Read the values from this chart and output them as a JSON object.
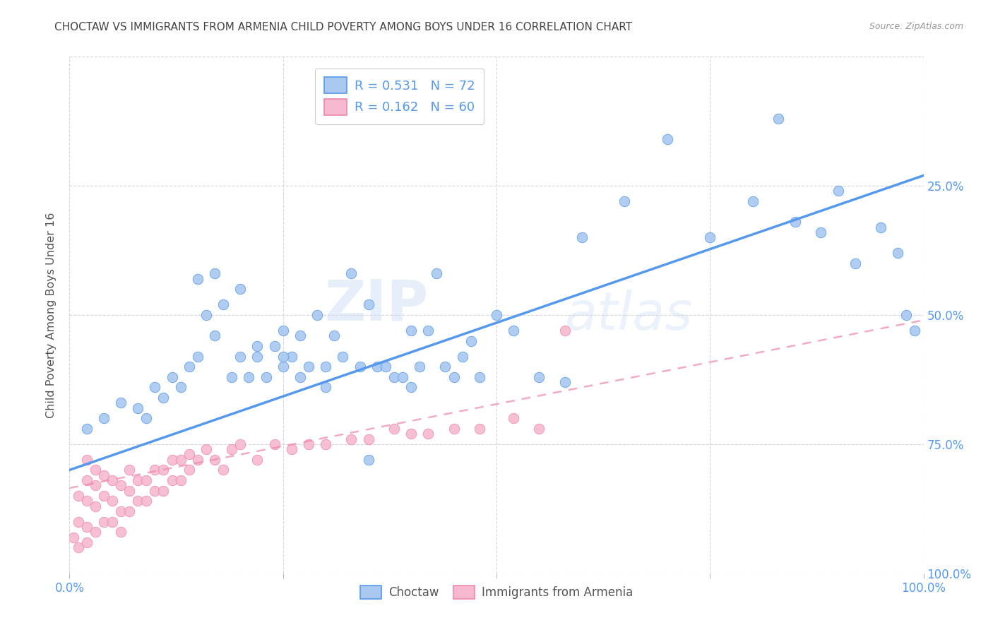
{
  "title": "CHOCTAW VS IMMIGRANTS FROM ARMENIA CHILD POVERTY AMONG BOYS UNDER 16 CORRELATION CHART",
  "source": "Source: ZipAtlas.com",
  "ylabel": "Child Poverty Among Boys Under 16",
  "xlim": [
    0,
    1
  ],
  "ylim": [
    0,
    1
  ],
  "xticks": [
    0.0,
    0.25,
    0.5,
    0.75,
    1.0
  ],
  "yticks": [
    0.0,
    0.25,
    0.5,
    0.75,
    1.0
  ],
  "xticklabels": [
    "0.0%",
    "",
    "",
    "",
    "100.0%"
  ],
  "right_yticklabels": [
    "100.0%",
    "75.0%",
    "50.0%",
    "25.0%",
    ""
  ],
  "watermark_line1": "ZIP",
  "watermark_line2": "atlas",
  "blue_R": "0.531",
  "blue_N": "72",
  "pink_R": "0.162",
  "pink_N": "60",
  "blue_color": "#a8c8f0",
  "pink_color": "#f5b8d0",
  "blue_line_color": "#5599ee",
  "pink_line_color": "#ee88aa",
  "grid_color": "#cccccc",
  "title_color": "#444444",
  "tick_color": "#5599ee",
  "blue_scatter_x": [
    0.02,
    0.04,
    0.06,
    0.08,
    0.09,
    0.1,
    0.11,
    0.12,
    0.13,
    0.14,
    0.15,
    0.16,
    0.17,
    0.17,
    0.18,
    0.19,
    0.2,
    0.21,
    0.22,
    0.22,
    0.23,
    0.24,
    0.25,
    0.25,
    0.26,
    0.27,
    0.27,
    0.28,
    0.29,
    0.3,
    0.31,
    0.32,
    0.33,
    0.34,
    0.35,
    0.36,
    0.37,
    0.38,
    0.39,
    0.4,
    0.41,
    0.42,
    0.43,
    0.44,
    0.45,
    0.46,
    0.47,
    0.48,
    0.5,
    0.52,
    0.55,
    0.58,
    0.6,
    0.65,
    0.7,
    0.75,
    0.8,
    0.83,
    0.85,
    0.88,
    0.9,
    0.92,
    0.95,
    0.97,
    0.98,
    0.99,
    0.15,
    0.2,
    0.25,
    0.3,
    0.35,
    0.4
  ],
  "blue_scatter_y": [
    0.28,
    0.3,
    0.33,
    0.32,
    0.3,
    0.36,
    0.34,
    0.38,
    0.36,
    0.4,
    0.42,
    0.5,
    0.46,
    0.58,
    0.52,
    0.38,
    0.42,
    0.38,
    0.44,
    0.42,
    0.38,
    0.44,
    0.4,
    0.47,
    0.42,
    0.38,
    0.46,
    0.4,
    0.5,
    0.4,
    0.46,
    0.42,
    0.58,
    0.4,
    0.52,
    0.4,
    0.4,
    0.38,
    0.38,
    0.47,
    0.4,
    0.47,
    0.58,
    0.4,
    0.38,
    0.42,
    0.45,
    0.38,
    0.5,
    0.47,
    0.38,
    0.37,
    0.65,
    0.72,
    0.84,
    0.65,
    0.72,
    0.88,
    0.68,
    0.66,
    0.74,
    0.6,
    0.67,
    0.62,
    0.5,
    0.47,
    0.57,
    0.55,
    0.42,
    0.36,
    0.22,
    0.36
  ],
  "pink_scatter_x": [
    0.005,
    0.01,
    0.01,
    0.01,
    0.02,
    0.02,
    0.02,
    0.02,
    0.02,
    0.03,
    0.03,
    0.03,
    0.03,
    0.04,
    0.04,
    0.04,
    0.05,
    0.05,
    0.05,
    0.06,
    0.06,
    0.06,
    0.07,
    0.07,
    0.07,
    0.08,
    0.08,
    0.09,
    0.09,
    0.1,
    0.1,
    0.11,
    0.11,
    0.12,
    0.12,
    0.13,
    0.13,
    0.14,
    0.14,
    0.15,
    0.16,
    0.17,
    0.18,
    0.19,
    0.2,
    0.22,
    0.24,
    0.26,
    0.28,
    0.3,
    0.33,
    0.35,
    0.38,
    0.4,
    0.42,
    0.45,
    0.48,
    0.52,
    0.55,
    0.58
  ],
  "pink_scatter_y": [
    0.07,
    0.05,
    0.1,
    0.15,
    0.06,
    0.09,
    0.14,
    0.18,
    0.22,
    0.08,
    0.13,
    0.17,
    0.2,
    0.1,
    0.15,
    0.19,
    0.1,
    0.14,
    0.18,
    0.08,
    0.12,
    0.17,
    0.12,
    0.16,
    0.2,
    0.14,
    0.18,
    0.14,
    0.18,
    0.16,
    0.2,
    0.16,
    0.2,
    0.18,
    0.22,
    0.18,
    0.22,
    0.2,
    0.23,
    0.22,
    0.24,
    0.22,
    0.2,
    0.24,
    0.25,
    0.22,
    0.25,
    0.24,
    0.25,
    0.25,
    0.26,
    0.26,
    0.28,
    0.27,
    0.27,
    0.28,
    0.28,
    0.3,
    0.28,
    0.47
  ],
  "blue_line_x": [
    0.0,
    1.0
  ],
  "blue_line_y": [
    0.2,
    0.77
  ],
  "pink_line_x": [
    0.0,
    1.0
  ],
  "pink_line_y": [
    0.165,
    0.49
  ],
  "background_color": "#ffffff",
  "legend_label_blue": "Choctaw",
  "legend_label_pink": "Immigrants from Armenia"
}
